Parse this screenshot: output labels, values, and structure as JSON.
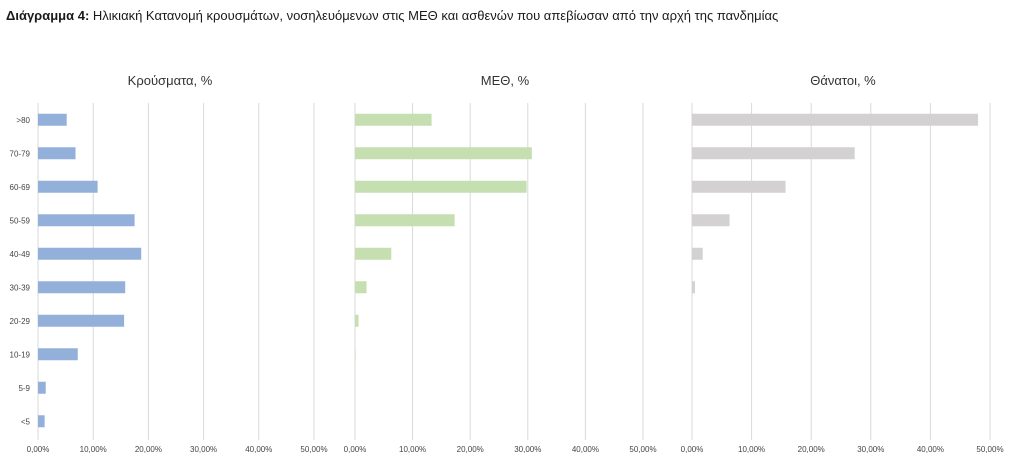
{
  "caption": {
    "label": "Διάγραμμα 4:",
    "text": "Ηλικιακή Κατανομή κρουσμάτων, νοσηλευόμενων στις ΜΕΘ και ασθενών που απεβίωσαν από την αρχή της πανδημίας"
  },
  "chart_data": [
    {
      "type": "bar",
      "orientation": "horizontal",
      "title": "Κρούσματα, %",
      "categories": [
        ">80",
        "70-79",
        "60-69",
        "50-59",
        "40-49",
        "30-39",
        "20-29",
        "10-19",
        "5-9",
        "<5"
      ],
      "values": [
        5.2,
        6.8,
        10.8,
        17.5,
        18.7,
        15.8,
        15.6,
        7.2,
        1.4,
        1.2
      ],
      "xlim": [
        0,
        50
      ],
      "xticks": [
        "0,00%",
        "10,00%",
        "20,00%",
        "30,00%",
        "40,00%",
        "50,00%"
      ],
      "grid": "vertical",
      "color": "#92B0DA"
    },
    {
      "type": "bar",
      "orientation": "horizontal",
      "title": "ΜΕΘ, %",
      "categories": [
        ">80",
        "70-79",
        "60-69",
        "50-59",
        "40-49",
        "30-39",
        "20-29",
        "10-19",
        "5-9",
        "<5"
      ],
      "values": [
        13.3,
        30.7,
        29.8,
        17.3,
        6.3,
        2.0,
        0.6,
        0.1,
        0,
        0
      ],
      "xlim": [
        0,
        50
      ],
      "xticks": [
        "0,00%",
        "10,00%",
        "20,00%",
        "30,00%",
        "40,00%",
        "50,00%"
      ],
      "grid": "vertical",
      "color": "#C5DFB1"
    },
    {
      "type": "bar",
      "orientation": "horizontal",
      "title": "Θάνατοι, %",
      "categories": [
        ">80",
        "70-79",
        "60-69",
        "50-59",
        "40-49",
        "30-39",
        "20-29",
        "10-19",
        "5-9",
        "<5"
      ],
      "values": [
        48.0,
        27.3,
        15.7,
        6.3,
        1.8,
        0.5,
        0,
        0,
        0,
        0
      ],
      "xlim": [
        0,
        50
      ],
      "xticks": [
        "0,00%",
        "10,00%",
        "20,00%",
        "30,00%",
        "40,00%",
        "50,00%"
      ],
      "grid": "vertical",
      "color": "#D3D1D1"
    }
  ]
}
